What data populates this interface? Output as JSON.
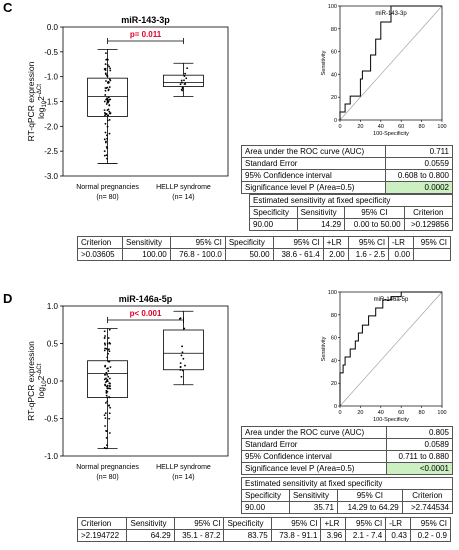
{
  "panels": [
    {
      "letter": "C",
      "box_title": "miR-143-3p",
      "p_text": "p= 0.011",
      "ylabel_line1": "RT-qPCR expression",
      "ylabel_line2": "log",
      "ylabel_sub": "10",
      "ylabel_sup": "2",
      "ylabel_supsup": "-ΔCt",
      "roc_title": "miR-143-3p",
      "auc_table": [
        [
          "Area under the ROC curve (AUC)",
          "0.711"
        ],
        [
          "Standard Error",
          "0.0559"
        ],
        [
          "95% Confidence interval",
          "0.608 to 0.800"
        ],
        [
          "Significance level P (Area=0.5)",
          "0.0002"
        ]
      ],
      "sens_caption": "Estimated sensitivity at fixed specificity",
      "sens_header": [
        "Specificity",
        "Sensitivity",
        "95% CI",
        "Criterion"
      ],
      "sens_row": [
        "90.00",
        "14.29",
        "0.00 to 50.00",
        ">0.129856"
      ],
      "crit_header": [
        "Criterion",
        "Sensitivity",
        "95% CI",
        "Specificity",
        "95% CI",
        "+LR",
        "95% CI",
        "-LR",
        "95% CI"
      ],
      "crit_row": [
        ">0.03605",
        "100.00",
        "76.8 - 100.0",
        "50.00",
        "38.6 - 61.4",
        "2.00",
        "1.6 - 2.5",
        "0.00",
        ""
      ]
    },
    {
      "letter": "D",
      "box_title": "miR-146a-5p",
      "p_text": "p< 0.001",
      "ylabel_line1": "RT-qPCR expression",
      "ylabel_line2": "log",
      "ylabel_sub": "10",
      "ylabel_sup": "2",
      "ylabel_supsup": "-ΔCt",
      "roc_title": "miR-146a-5p",
      "auc_table": [
        [
          "Area under the ROC curve (AUC)",
          "0.805"
        ],
        [
          "Standard Error",
          "0.0589"
        ],
        [
          "95% Confidence interval",
          "0.711 to 0.880"
        ],
        [
          "Significance level P (Area=0.5)",
          "<0.0001"
        ]
      ],
      "sens_caption": "Estimated sensitivity at fixed specificity",
      "sens_header": [
        "Specificity",
        "Sensitivity",
        "95% CI",
        "Criterion"
      ],
      "sens_row": [
        "90.00",
        "35.71",
        "14.29 to 64.29",
        ">2.744534"
      ],
      "crit_header": [
        "Criterion",
        "Sensitivity",
        "95% CI",
        "Specificity",
        "95% CI",
        "+LR",
        "95% CI",
        "-LR",
        "95% CI"
      ],
      "crit_row": [
        ">2.194722",
        "64.29",
        "35.1 - 87.2",
        "83.75",
        "73.8 - 91.1",
        "3.96",
        "2.1 - 7.4",
        "0.43",
        "0.2 - 0.9"
      ]
    }
  ],
  "chart_data": [
    {
      "type": "box",
      "title": "miR-143-3p",
      "ylabel": "RT-qPCR expression log10 2-ΔCt",
      "ylim": [
        -3.0,
        0.0
      ],
      "yticks": [
        "0.0",
        "-0.5",
        "-1.0",
        "-1.5",
        "-2.0",
        "-2.5",
        "-3.0"
      ],
      "ytick_values": [
        0.0,
        -0.5,
        -1.0,
        -1.5,
        -2.0,
        -2.5,
        -3.0
      ],
      "categories": [
        "Normal pregnancies",
        "HELLP syndrome"
      ],
      "category_n": [
        "(n= 80)",
        "(n= 14)"
      ],
      "boxes": [
        {
          "min": -2.75,
          "q1": -1.8,
          "median": -1.4,
          "q3": -1.03,
          "max": -0.45
        },
        {
          "min": -1.4,
          "q1": -1.2,
          "median": -1.12,
          "q3": -0.97,
          "max": -0.73
        }
      ],
      "p_value": "p= 0.011"
    },
    {
      "type": "line",
      "title": "miR-143-3p",
      "xlabel": "100-Specificity",
      "ylabel": "Sensitivity",
      "xlim": [
        0,
        100
      ],
      "ylim": [
        0,
        100
      ],
      "ticks": [
        "0",
        "20",
        "40",
        "60",
        "80",
        "100"
      ],
      "tick_values": [
        0,
        20,
        40,
        60,
        80,
        100
      ],
      "roc_x": [
        0,
        0,
        5,
        5,
        10,
        10,
        20,
        20,
        22,
        22,
        30,
        30,
        35,
        35,
        40,
        40,
        50,
        50,
        60,
        70,
        80,
        90,
        100
      ],
      "roc_y": [
        0,
        7,
        7,
        14,
        14,
        21,
        21,
        36,
        36,
        43,
        43,
        57,
        57,
        71,
        71,
        86,
        86,
        100,
        100,
        100,
        100,
        100,
        100
      ]
    },
    {
      "type": "box",
      "title": "miR-146a-5p",
      "ylabel": "RT-qPCR expression log10 2-ΔCt",
      "ylim": [
        -1.0,
        1.0
      ],
      "yticks": [
        "1.0",
        "0.5",
        "0.0",
        "-0.5",
        "-1.0"
      ],
      "ytick_values": [
        1.0,
        0.5,
        0.0,
        -0.5,
        -1.0
      ],
      "categories": [
        "Normal pregnancies",
        "HELLP syndrome"
      ],
      "category_n": [
        "(n= 80)",
        "(n= 14)"
      ],
      "boxes": [
        {
          "min": -0.9,
          "q1": -0.22,
          "median": 0.1,
          "q3": 0.27,
          "max": 0.7
        },
        {
          "min": -0.05,
          "q1": 0.15,
          "median": 0.37,
          "q3": 0.68,
          "max": 0.93
        }
      ],
      "p_value": "p< 0.001"
    },
    {
      "type": "line",
      "title": "miR-146a-5p",
      "xlabel": "100-Specificity",
      "ylabel": "Sensitivity",
      "xlim": [
        0,
        100
      ],
      "ylim": [
        0,
        100
      ],
      "ticks": [
        "0",
        "20",
        "40",
        "60",
        "80",
        "100"
      ],
      "tick_values": [
        0,
        20,
        40,
        60,
        80,
        100
      ],
      "roc_x": [
        0,
        0,
        3,
        3,
        5,
        5,
        10,
        10,
        15,
        15,
        18,
        18,
        22,
        22,
        28,
        28,
        35,
        35,
        42,
        42,
        50,
        50,
        60,
        60,
        75,
        100
      ],
      "roc_y": [
        0,
        29,
        29,
        36,
        36,
        43,
        43,
        50,
        50,
        57,
        57,
        64,
        64,
        71,
        71,
        79,
        79,
        86,
        86,
        93,
        93,
        96,
        96,
        100,
        100,
        100
      ]
    }
  ]
}
